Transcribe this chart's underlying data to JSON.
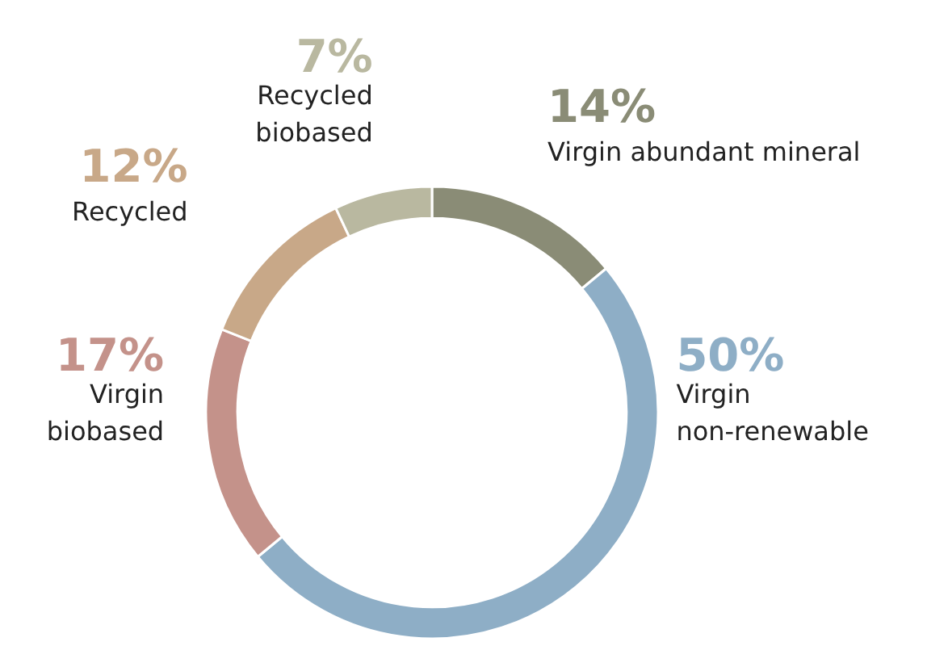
{
  "chart_data": {
    "type": "donut",
    "categories": [
      "Virgin abundant mineral",
      "Virgin\nnon-renewable",
      "Virgin\nbiobased",
      "Recycled",
      "Recycled\nbiobased"
    ],
    "values": [
      14,
      50,
      17,
      12,
      7
    ],
    "colors": [
      "#8a8c76",
      "#8eaec6",
      "#c4928a",
      "#c8a888",
      "#b9b8a0"
    ],
    "value_labels": [
      "14%",
      "50%",
      "17%",
      "12%",
      "7%"
    ]
  }
}
